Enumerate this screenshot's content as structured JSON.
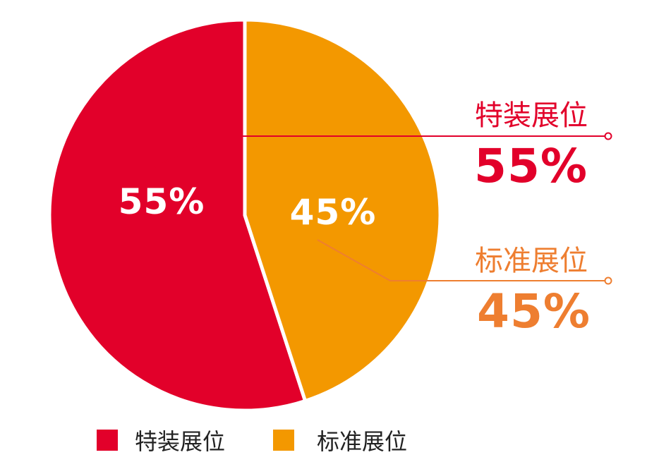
{
  "chart_data": {
    "type": "pie",
    "categories": [
      "特装展位",
      "标准展位"
    ],
    "values": [
      55,
      45
    ],
    "labels": [
      "55%",
      "45%"
    ],
    "colors": [
      "#e2002a",
      "#f39800"
    ],
    "callout_value_colors": [
      "#e2002a",
      "#ee7e30"
    ],
    "title": "",
    "legend_position": "bottom-center"
  },
  "callouts": [
    {
      "name": "特装展位",
      "value": "55%"
    },
    {
      "name": "标准展位",
      "value": "45%"
    }
  ],
  "legend": [
    {
      "label": "特装展位",
      "color": "#e2002a"
    },
    {
      "label": "标准展位",
      "color": "#f39800"
    }
  ]
}
